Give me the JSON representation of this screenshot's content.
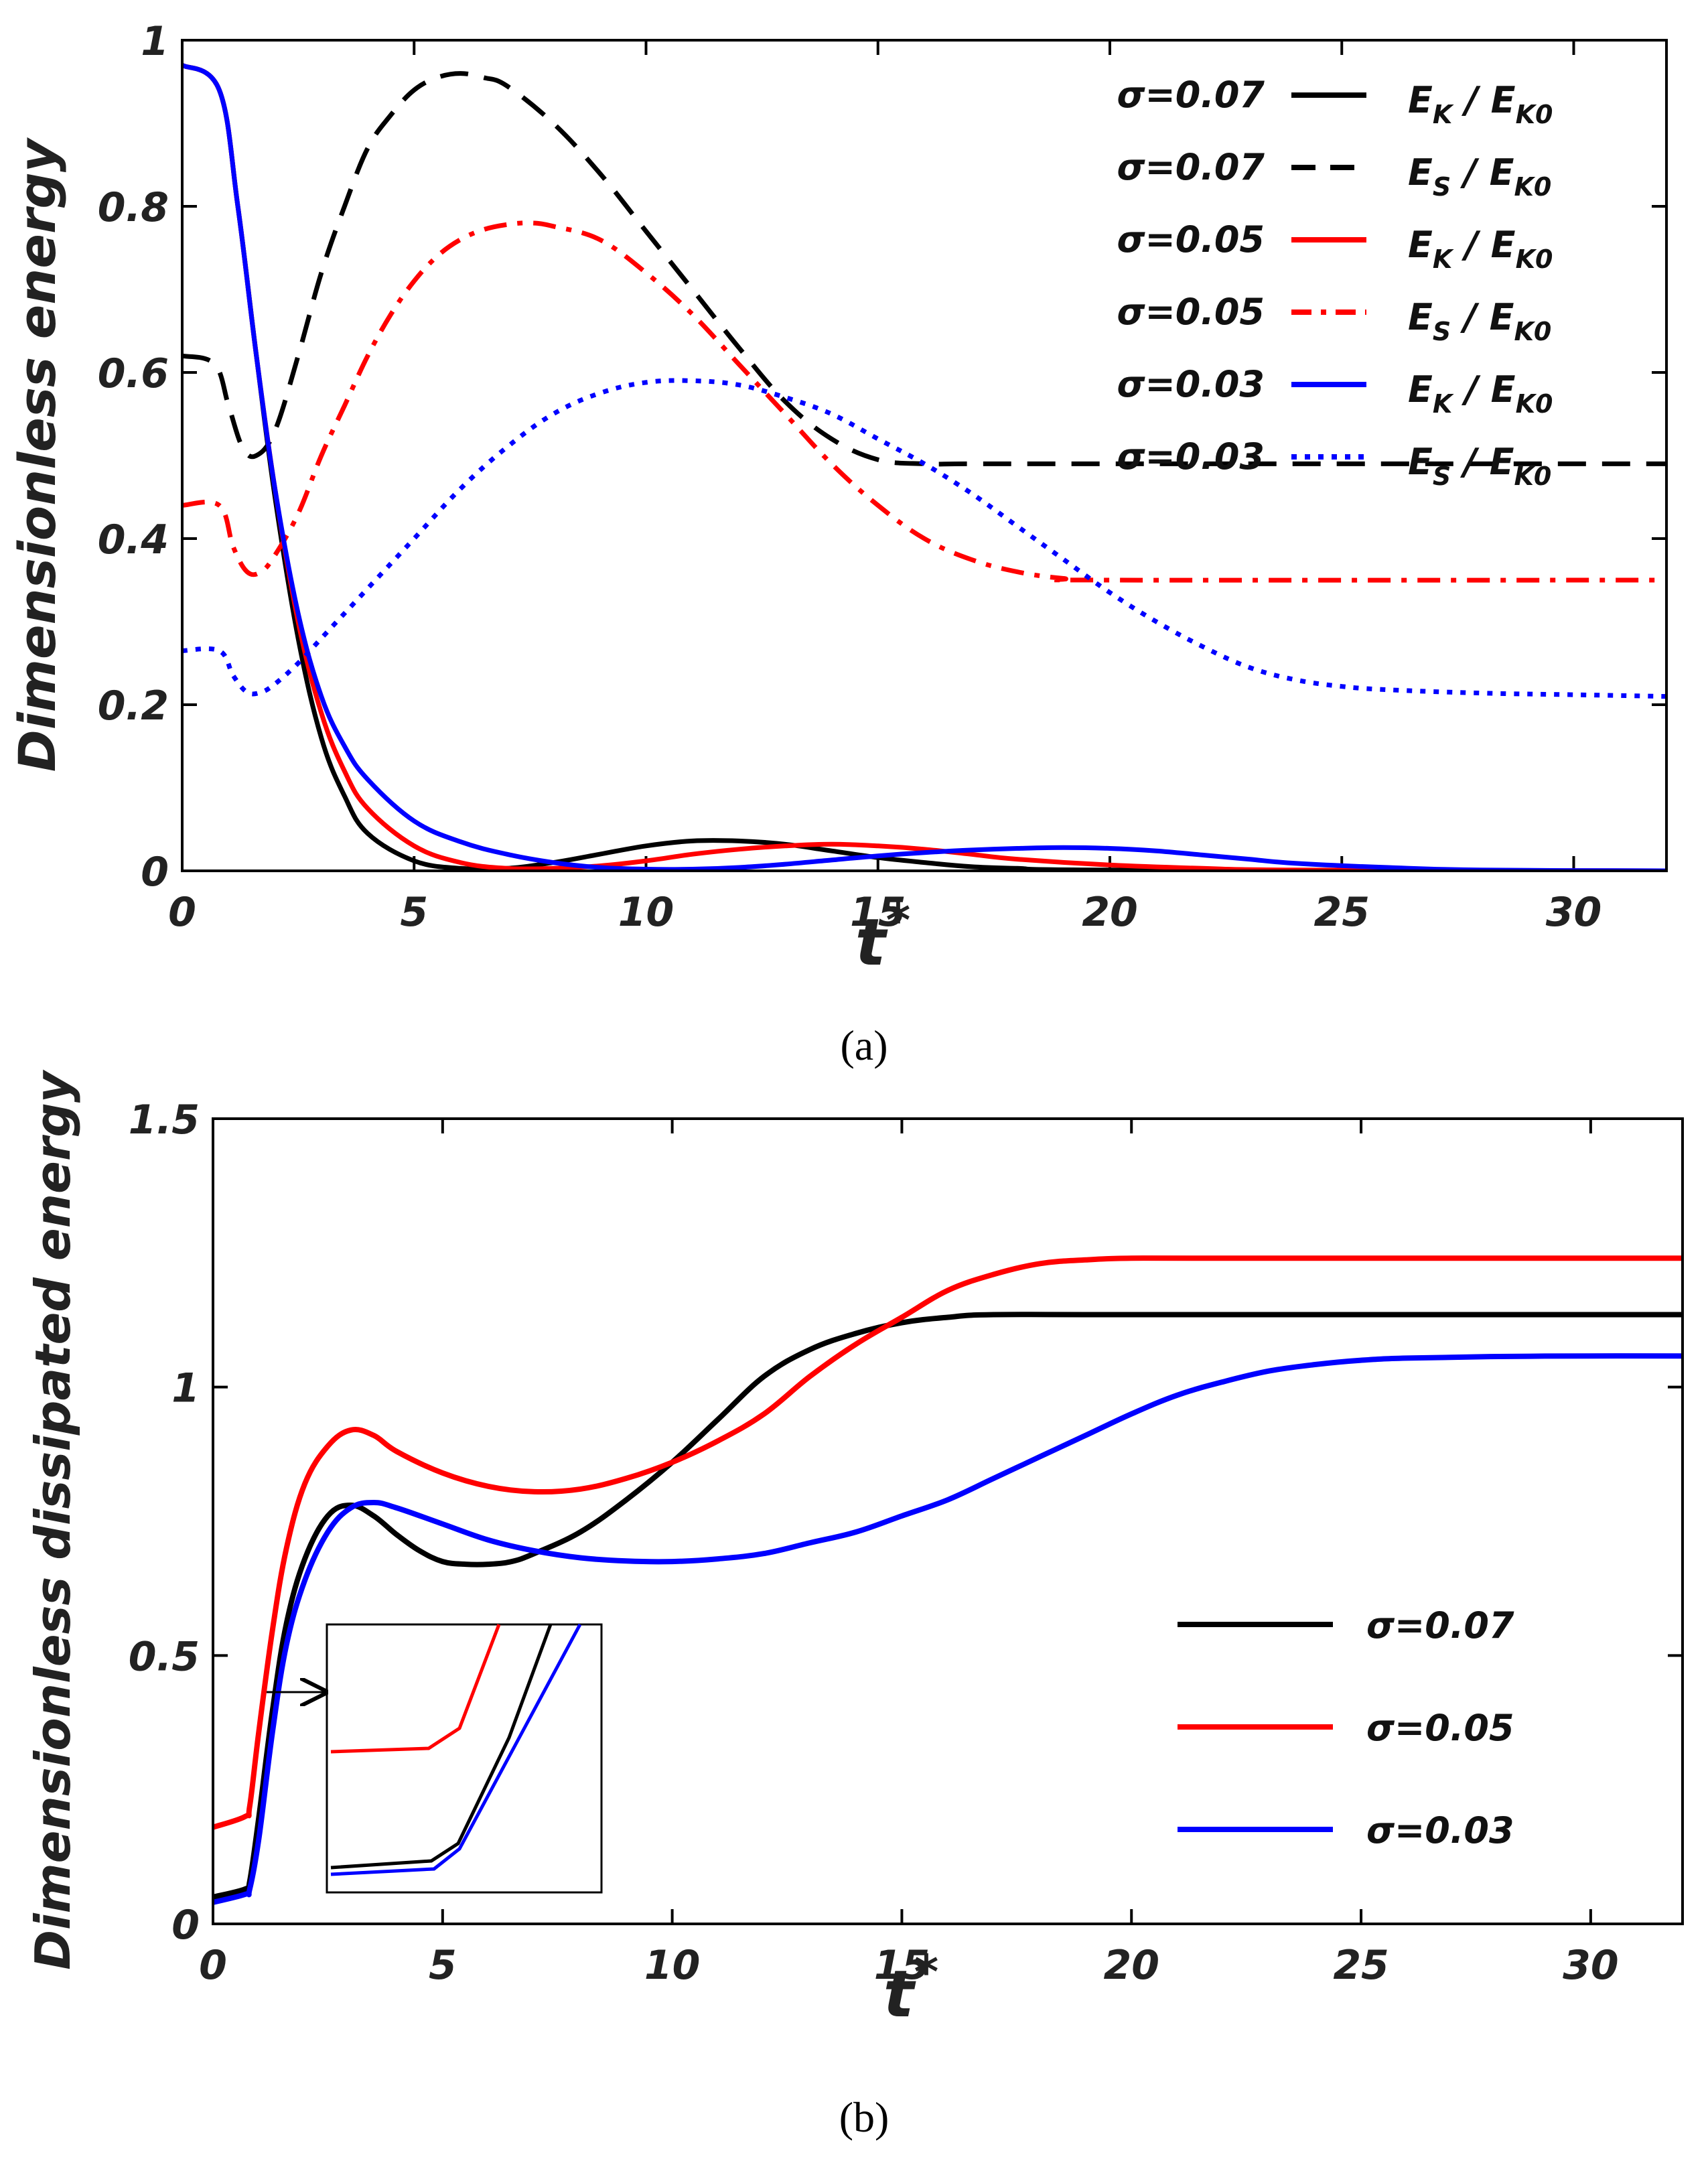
{
  "colors": {
    "black": "#000000",
    "red": "#ff0000",
    "blue": "#0000ff",
    "text": "#222222"
  },
  "chart_data": [
    {
      "type": "line",
      "caption": "(a)",
      "xlabel": "t",
      "xlabel_sup": "*",
      "ylabel": "Dimensionless energy",
      "xlim": [
        0,
        32
      ],
      "ylim": [
        0,
        1
      ],
      "xticks": [
        0,
        5,
        10,
        15,
        20,
        25,
        30
      ],
      "xtick_labels": [
        "0",
        "5",
        "10",
        "15",
        "20",
        "25",
        "30"
      ],
      "yticks": [
        0,
        0.2,
        0.4,
        0.6,
        0.8,
        1
      ],
      "ytick_labels": [
        "0",
        "0.2",
        "0.4",
        "0.6",
        "0.8",
        "1"
      ],
      "legend_position": "top-right",
      "series": [
        {
          "name": "σ=0.07",
          "sigma": "σ=0.07",
          "qty": "E_K / E_K0",
          "qty_main": "E",
          "qty_sub": "K",
          "qty_den_main": "E",
          "qty_den_sub": "K0",
          "color": "#000000",
          "dash": "solid",
          "x": [
            0,
            0.8,
            1.2,
            1.6,
            2,
            2.5,
            3,
            3.5,
            4,
            5,
            6,
            7,
            8,
            9,
            10,
            11,
            12,
            13,
            14,
            15,
            16,
            17,
            18,
            20,
            32
          ],
          "y": [
            0.97,
            0.94,
            0.8,
            0.62,
            0.45,
            0.28,
            0.16,
            0.09,
            0.045,
            0.012,
            0.003,
            0.003,
            0.01,
            0.02,
            0.03,
            0.036,
            0.036,
            0.032,
            0.024,
            0.016,
            0.01,
            0.005,
            0.003,
            0.001,
            0
          ]
        },
        {
          "name": "σ=0.07",
          "sigma": "σ=0.07",
          "qty": "E_S / E_K0",
          "qty_main": "E",
          "qty_sub": "S",
          "qty_den_main": "E",
          "qty_den_sub": "K0",
          "color": "#000000",
          "dash": "dashed",
          "x": [
            0,
            0.7,
            1,
            1.3,
            1.6,
            2,
            2.5,
            3,
            3.5,
            4,
            4.5,
            5,
            5.5,
            6,
            6.5,
            7,
            8,
            9,
            10,
            11,
            12,
            13,
            14,
            15,
            16,
            17,
            20,
            32
          ],
          "y": [
            0.62,
            0.61,
            0.56,
            0.51,
            0.5,
            0.53,
            0.62,
            0.72,
            0.8,
            0.87,
            0.91,
            0.94,
            0.955,
            0.96,
            0.955,
            0.945,
            0.9,
            0.84,
            0.77,
            0.7,
            0.63,
            0.565,
            0.52,
            0.495,
            0.49,
            0.49,
            0.49,
            0.49
          ]
        },
        {
          "name": "σ=0.05",
          "sigma": "σ=0.05",
          "qty": "E_K / E_K0",
          "qty_main": "E",
          "qty_sub": "K",
          "qty_den_main": "E",
          "qty_den_sub": "K0",
          "color": "#ff0000",
          "dash": "solid",
          "x": [
            0,
            0.8,
            1.2,
            1.6,
            2,
            2.5,
            3,
            3.5,
            4,
            5,
            6,
            7,
            8,
            9,
            10,
            11,
            12,
            13,
            14,
            15,
            16,
            17,
            18,
            20,
            22,
            24,
            32
          ],
          "y": [
            0.97,
            0.94,
            0.8,
            0.62,
            0.46,
            0.3,
            0.19,
            0.12,
            0.075,
            0.03,
            0.01,
            0.003,
            0.003,
            0.006,
            0.012,
            0.02,
            0.026,
            0.03,
            0.032,
            0.03,
            0.026,
            0.02,
            0.014,
            0.007,
            0.003,
            0.001,
            0
          ]
        },
        {
          "name": "σ=0.05",
          "sigma": "σ=0.05",
          "qty": "E_S / E_K0",
          "qty_main": "E",
          "qty_sub": "S",
          "qty_den_main": "E",
          "qty_den_sub": "K0",
          "color": "#ff0000",
          "dash": "dashdot",
          "x": [
            0,
            0.8,
            1.1,
            1.4,
            1.7,
            2,
            2.5,
            3,
            3.5,
            4,
            4.5,
            5,
            5.5,
            6,
            6.5,
            7,
            7.5,
            8,
            9,
            10,
            11,
            12,
            13,
            14,
            15,
            16,
            17,
            18,
            19,
            20,
            32
          ],
          "y": [
            0.44,
            0.44,
            0.39,
            0.36,
            0.36,
            0.38,
            0.43,
            0.5,
            0.56,
            0.62,
            0.67,
            0.71,
            0.74,
            0.76,
            0.772,
            0.778,
            0.78,
            0.776,
            0.76,
            0.72,
            0.67,
            0.61,
            0.55,
            0.49,
            0.44,
            0.4,
            0.375,
            0.36,
            0.352,
            0.35,
            0.35
          ]
        },
        {
          "name": "σ=0.03",
          "sigma": "σ=0.03",
          "qty": "E_K / E_K0",
          "qty_main": "E",
          "qty_sub": "K",
          "qty_den_main": "E",
          "qty_den_sub": "K0",
          "color": "#0000ff",
          "dash": "solid",
          "x": [
            0,
            0.8,
            1.2,
            1.6,
            2,
            2.5,
            3,
            3.5,
            4,
            5,
            6,
            7,
            8,
            9,
            10,
            11,
            12,
            13,
            14,
            15,
            16,
            17,
            18,
            19,
            20,
            21,
            22,
            23,
            24,
            26,
            28,
            32
          ],
          "y": [
            0.97,
            0.94,
            0.8,
            0.62,
            0.46,
            0.31,
            0.21,
            0.15,
            0.11,
            0.06,
            0.035,
            0.02,
            0.01,
            0.004,
            0.002,
            0.002,
            0.004,
            0.008,
            0.013,
            0.018,
            0.022,
            0.025,
            0.027,
            0.028,
            0.027,
            0.024,
            0.019,
            0.014,
            0.009,
            0.004,
            0.001,
            0
          ]
        },
        {
          "name": "σ=0.03",
          "sigma": "σ=0.03",
          "qty": "E_S / E_K0",
          "qty_main": "E",
          "qty_sub": "S",
          "qty_den_main": "E",
          "qty_den_sub": "K0",
          "color": "#0000ff",
          "dash": "dotted",
          "x": [
            0,
            0.8,
            1.1,
            1.4,
            1.7,
            2,
            2.5,
            3,
            4,
            5,
            6,
            7,
            8,
            9,
            10,
            11,
            12,
            13,
            14,
            15,
            16,
            17,
            18,
            19,
            20,
            21,
            22,
            23,
            24,
            25,
            26,
            28,
            30,
            32
          ],
          "y": [
            0.265,
            0.265,
            0.235,
            0.215,
            0.215,
            0.225,
            0.25,
            0.28,
            0.34,
            0.4,
            0.46,
            0.51,
            0.55,
            0.575,
            0.588,
            0.59,
            0.585,
            0.57,
            0.55,
            0.52,
            0.49,
            0.455,
            0.415,
            0.375,
            0.335,
            0.3,
            0.27,
            0.245,
            0.23,
            0.222,
            0.218,
            0.214,
            0.212,
            0.21
          ]
        }
      ]
    },
    {
      "type": "line",
      "caption": "(b)",
      "xlabel": "t",
      "xlabel_sup": "*",
      "ylabel": "Dimensionless dissipated energy",
      "xlim": [
        0,
        32
      ],
      "ylim": [
        0,
        1.5
      ],
      "xticks": [
        0,
        5,
        10,
        15,
        20,
        25,
        30
      ],
      "xtick_labels": [
        "0",
        "5",
        "10",
        "15",
        "20",
        "25",
        "30"
      ],
      "yticks": [
        0,
        0.5,
        1,
        1.5
      ],
      "ytick_labels": [
        "0",
        "0.5",
        "1",
        "1.5"
      ],
      "legend_position": "center-right",
      "inset": {
        "description": "zoom of early-time region",
        "x_range": [
          0,
          1.5
        ],
        "note": "arrow from main curve at t*≈1"
      },
      "series": [
        {
          "name": "σ=0.07",
          "color": "#000000",
          "x": [
            0,
            0.7,
            0.8,
            1,
            1.3,
            1.6,
            2,
            2.5,
            3,
            3.5,
            4,
            4.5,
            5,
            5.5,
            6,
            6.5,
            7,
            8,
            9,
            10,
            11,
            12,
            13,
            14,
            15,
            16,
            17,
            20,
            32
          ],
          "y": [
            0.05,
            0.065,
            0.08,
            0.2,
            0.4,
            0.56,
            0.68,
            0.76,
            0.78,
            0.76,
            0.725,
            0.695,
            0.675,
            0.67,
            0.67,
            0.675,
            0.69,
            0.73,
            0.79,
            0.86,
            0.94,
            1.02,
            1.07,
            1.1,
            1.12,
            1.13,
            1.135,
            1.135,
            1.135
          ]
        },
        {
          "name": "σ=0.05",
          "color": "#ff0000",
          "x": [
            0,
            0.7,
            0.8,
            1,
            1.3,
            1.6,
            2,
            2.5,
            3,
            3.5,
            4,
            5,
            6,
            7,
            8,
            9,
            10,
            11,
            12,
            13,
            14,
            15,
            16,
            17,
            18,
            19,
            20,
            22,
            32
          ],
          "y": [
            0.18,
            0.2,
            0.22,
            0.36,
            0.55,
            0.7,
            0.82,
            0.89,
            0.92,
            0.91,
            0.88,
            0.84,
            0.815,
            0.805,
            0.81,
            0.83,
            0.86,
            0.9,
            0.95,
            1.02,
            1.08,
            1.13,
            1.18,
            1.21,
            1.23,
            1.237,
            1.24,
            1.24,
            1.24
          ]
        },
        {
          "name": "σ=0.03",
          "color": "#0000ff",
          "x": [
            0,
            0.7,
            0.8,
            1,
            1.3,
            1.6,
            2,
            2.5,
            3,
            3.5,
            4,
            5,
            6,
            7,
            8,
            9,
            10,
            11,
            12,
            13,
            14,
            15,
            16,
            17,
            18,
            19,
            20,
            21,
            22,
            23,
            24,
            25,
            26,
            28,
            30,
            32
          ],
          "y": [
            0.04,
            0.055,
            0.065,
            0.16,
            0.36,
            0.52,
            0.64,
            0.73,
            0.775,
            0.785,
            0.775,
            0.745,
            0.715,
            0.695,
            0.682,
            0.676,
            0.675,
            0.68,
            0.69,
            0.71,
            0.73,
            0.76,
            0.79,
            0.83,
            0.87,
            0.91,
            0.95,
            0.985,
            1.01,
            1.03,
            1.042,
            1.05,
            1.054,
            1.057,
            1.058,
            1.058
          ]
        }
      ]
    }
  ]
}
